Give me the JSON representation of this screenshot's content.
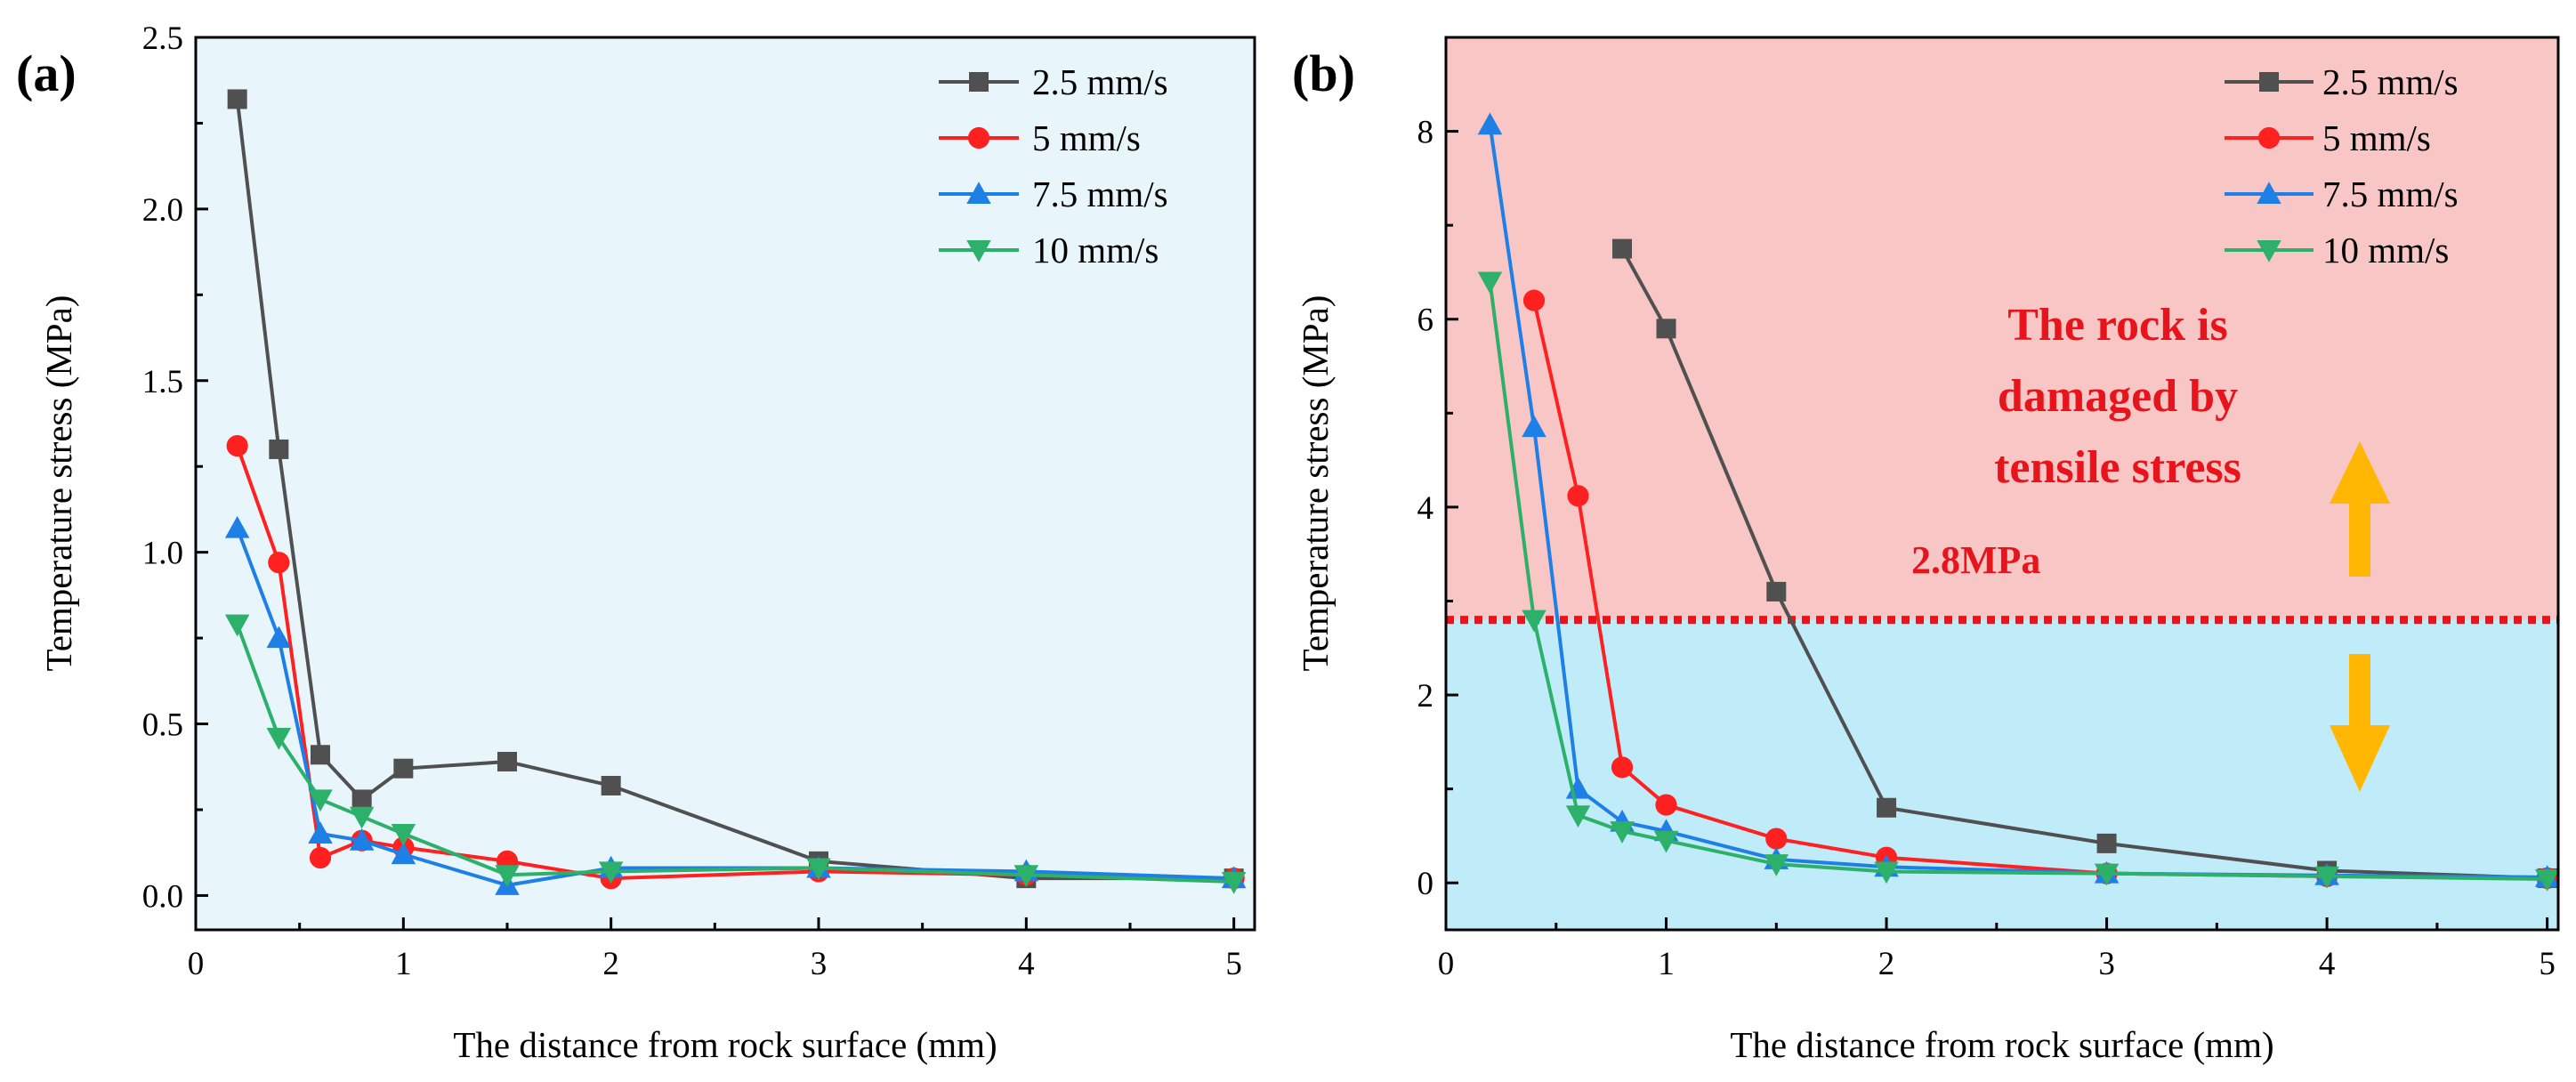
{
  "chart_data": [
    {
      "type": "line",
      "panel_label": "(a)",
      "xlabel": "The distance from rock surface (mm)",
      "ylabel": "Temperature stress (MPa)",
      "xlim": [
        0,
        5.1
      ],
      "ylim": [
        -0.1,
        2.5
      ],
      "xticks": [
        "0",
        "1",
        "2",
        "3",
        "4",
        "5"
      ],
      "yticks": [
        "0.0",
        "0.5",
        "1.0",
        "1.5",
        "2.0",
        "2.5"
      ],
      "x": [
        0.2,
        0.4,
        0.6,
        0.8,
        1.0,
        1.5,
        2.0,
        3.0,
        4.0,
        5.0
      ],
      "grid": false,
      "legend_position": "top-right",
      "background_color": "#e8f6fb",
      "series": [
        {
          "name": "2.5 mm/s",
          "color": "#505050",
          "marker": "square",
          "values": [
            2.32,
            1.3,
            0.41,
            0.28,
            0.37,
            0.39,
            0.32,
            0.1,
            0.05,
            0.05
          ]
        },
        {
          "name": "5 mm/s",
          "color": "#ff2020",
          "marker": "circle",
          "values": [
            1.31,
            0.97,
            0.11,
            0.16,
            0.14,
            0.1,
            0.05,
            0.07,
            0.06,
            0.05
          ]
        },
        {
          "name": "7.5 mm/s",
          "color": "#1e7fe6",
          "marker": "triangle-up",
          "values": [
            1.07,
            0.75,
            0.18,
            0.16,
            0.12,
            0.03,
            0.08,
            0.08,
            0.07,
            0.05
          ]
        },
        {
          "name": "10 mm/s",
          "color": "#2db06a",
          "marker": "triangle-down",
          "values": [
            0.79,
            0.46,
            0.28,
            0.23,
            0.18,
            0.06,
            0.07,
            0.08,
            0.06,
            0.04
          ]
        }
      ]
    },
    {
      "type": "line",
      "panel_label": "(b)",
      "xlabel": "The distance from rock surface (mm)",
      "ylabel": "Temperature stress (MPa)",
      "xlim": [
        0,
        5.05
      ],
      "ylim": [
        -0.5,
        9.0
      ],
      "xticks": [
        "0",
        "1",
        "2",
        "3",
        "4",
        "5"
      ],
      "yticks": [
        "0",
        "2",
        "4",
        "6",
        "8"
      ],
      "x": [
        0.2,
        0.4,
        0.6,
        0.8,
        1.0,
        1.5,
        2.0,
        3.0,
        4.0,
        5.0
      ],
      "grid": false,
      "legend_position": "top-right",
      "threshold": {
        "value": 2.8,
        "label": "2.8MPa",
        "color": "#e8141c",
        "above_color": "#f9c6c6",
        "below_color": "#bfecf8"
      },
      "annotation": {
        "lines": [
          "The rock is",
          "damaged by",
          "tensile stress"
        ],
        "color": "#e8141c"
      },
      "arrow_color": "#ffb703",
      "series": [
        {
          "name": "2.5 mm/s",
          "color": "#505050",
          "marker": "square",
          "values": [
            null,
            null,
            null,
            6.75,
            5.9,
            3.1,
            0.8,
            0.42,
            0.13,
            0.05
          ]
        },
        {
          "name": "5 mm/s",
          "color": "#ff2020",
          "marker": "circle",
          "values": [
            null,
            6.2,
            4.12,
            1.23,
            0.83,
            0.47,
            0.27,
            0.1,
            0.07,
            0.05
          ]
        },
        {
          "name": "7.5 mm/s",
          "color": "#1e7fe6",
          "marker": "triangle-up",
          "values": [
            8.07,
            4.85,
            1.0,
            0.65,
            0.55,
            0.25,
            0.17,
            0.1,
            0.08,
            0.06
          ]
        },
        {
          "name": "10 mm/s",
          "color": "#2db06a",
          "marker": "triangle-down",
          "values": [
            6.4,
            2.8,
            0.72,
            0.55,
            0.45,
            0.2,
            0.12,
            0.1,
            0.07,
            0.04
          ]
        }
      ]
    }
  ]
}
